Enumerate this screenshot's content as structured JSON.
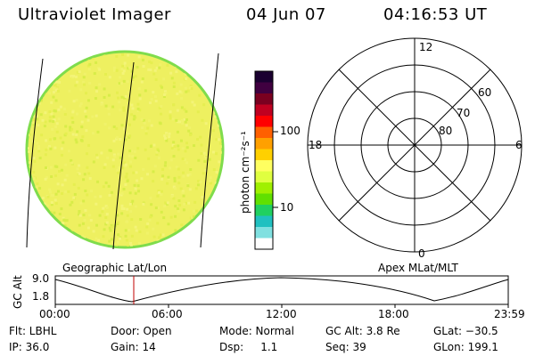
{
  "header": {
    "title": "Ultraviolet Imager",
    "date": "04 Jun 07",
    "time": "04:16:53 UT"
  },
  "colorbar": {
    "unit_label": "photon cm⁻²s⁻¹",
    "ticks": [
      "100",
      "10"
    ],
    "colors": [
      "#1a0030",
      "#400040",
      "#7a0020",
      "#c00020",
      "#ff0000",
      "#ff6000",
      "#ffa000",
      "#ffd000",
      "#ffff60",
      "#e0ff40",
      "#a0f000",
      "#60e000",
      "#20d060",
      "#20c0c0",
      "#80e0e0",
      "#ffffff"
    ]
  },
  "disk": {
    "fill": "#eef060",
    "edge": "#7fdc4c"
  },
  "polar": {
    "mlt_labels": {
      "top": "12",
      "left": "18",
      "right": "6",
      "bottom": "0"
    },
    "lat_labels": [
      "60",
      "70",
      "80"
    ]
  },
  "orbit_panel": {
    "left_title": "Geographic Lat/Lon",
    "right_title": "Apex  MLat/MLT",
    "axis_label": "GC Alt",
    "y_ticks": [
      "9.0",
      "1.8"
    ],
    "x_ticks": [
      "00:00",
      "06:00",
      "12:00",
      "18:00",
      "23:59"
    ],
    "marker_color": "#c00000"
  },
  "info_rows": [
    {
      "flt": "Flt: LBHL",
      "door": "Door: Open",
      "mode": "Mode: Normal",
      "gcalt": "GC Alt: 3.8 Re",
      "glat": "GLat: −30.5"
    },
    {
      "flt": "IP: 36.0",
      "door": "Gain: 14",
      "mode": "Dsp:     1.1",
      "gcalt": "Seq: 39",
      "glat": "GLon: 199.1"
    }
  ]
}
